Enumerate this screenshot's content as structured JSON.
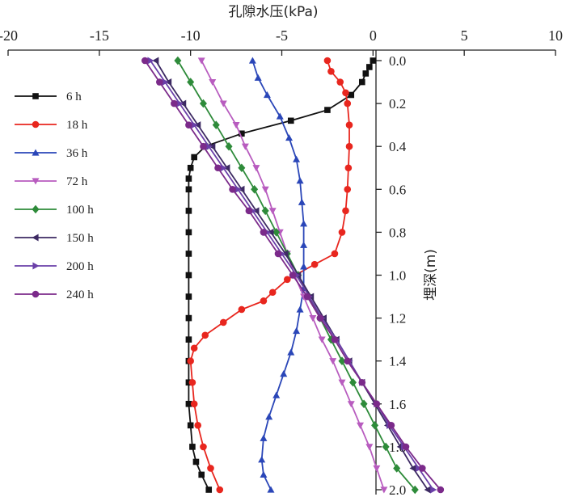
{
  "chart_data": {
    "type": "line",
    "xlabel": "孔隙水压(kPa)",
    "ylabel": "埋深(m)",
    "xlim": [
      -20,
      10
    ],
    "ylim": [
      0.0,
      2.0
    ],
    "x_ticks": [
      "-20",
      "-15",
      "-10",
      "-5",
      "0",
      "5",
      "10"
    ],
    "y_ticks": [
      "0.0",
      "0.2",
      "0.4",
      "0.6",
      "0.8",
      "1.0",
      "1.2",
      "1.4",
      "1.6",
      "1.8",
      "2.0"
    ],
    "legend_position": "left",
    "series": [
      {
        "name": "6 h",
        "color": "#111111",
        "marker": "square",
        "points": [
          [
            0.0,
            0.0
          ],
          [
            -0.2,
            0.03
          ],
          [
            -0.4,
            0.06
          ],
          [
            -0.6,
            0.1
          ],
          [
            -1.2,
            0.16
          ],
          [
            -2.5,
            0.23
          ],
          [
            -4.5,
            0.28
          ],
          [
            -7.2,
            0.34
          ],
          [
            -9.2,
            0.4
          ],
          [
            -9.8,
            0.45
          ],
          [
            -10.0,
            0.5
          ],
          [
            -10.1,
            0.55
          ],
          [
            -10.1,
            0.6
          ],
          [
            -10.1,
            0.7
          ],
          [
            -10.1,
            0.8
          ],
          [
            -10.1,
            0.9
          ],
          [
            -10.1,
            1.0
          ],
          [
            -10.1,
            1.1
          ],
          [
            -10.1,
            1.2
          ],
          [
            -10.1,
            1.3
          ],
          [
            -10.1,
            1.4
          ],
          [
            -10.1,
            1.5
          ],
          [
            -10.1,
            1.6
          ],
          [
            -10.0,
            1.7
          ],
          [
            -9.9,
            1.8
          ],
          [
            -9.7,
            1.87
          ],
          [
            -9.4,
            1.93
          ],
          [
            -9.0,
            2.0
          ]
        ]
      },
      {
        "name": "18 h",
        "color": "#e8261e",
        "marker": "circle",
        "points": [
          [
            -2.5,
            0.0
          ],
          [
            -2.3,
            0.05
          ],
          [
            -1.8,
            0.1
          ],
          [
            -1.5,
            0.15
          ],
          [
            -1.4,
            0.2
          ],
          [
            -1.3,
            0.3
          ],
          [
            -1.3,
            0.4
          ],
          [
            -1.35,
            0.5
          ],
          [
            -1.4,
            0.6
          ],
          [
            -1.5,
            0.7
          ],
          [
            -1.7,
            0.8
          ],
          [
            -2.1,
            0.9
          ],
          [
            -3.2,
            0.95
          ],
          [
            -4.7,
            1.02
          ],
          [
            -5.5,
            1.08
          ],
          [
            -6.0,
            1.12
          ],
          [
            -7.2,
            1.16
          ],
          [
            -8.2,
            1.22
          ],
          [
            -9.2,
            1.28
          ],
          [
            -9.8,
            1.34
          ],
          [
            -10.0,
            1.4
          ],
          [
            -9.9,
            1.5
          ],
          [
            -9.8,
            1.6
          ],
          [
            -9.6,
            1.7
          ],
          [
            -9.3,
            1.8
          ],
          [
            -8.9,
            1.9
          ],
          [
            -8.4,
            2.0
          ]
        ]
      },
      {
        "name": "36 h",
        "color": "#2a46b8",
        "marker": "triangle-up",
        "points": [
          [
            -6.6,
            0.0
          ],
          [
            -6.3,
            0.08
          ],
          [
            -5.8,
            0.16
          ],
          [
            -5.1,
            0.26
          ],
          [
            -4.6,
            0.36
          ],
          [
            -4.2,
            0.46
          ],
          [
            -4.0,
            0.56
          ],
          [
            -3.9,
            0.66
          ],
          [
            -3.8,
            0.76
          ],
          [
            -3.8,
            0.86
          ],
          [
            -3.8,
            0.96
          ],
          [
            -3.8,
            1.06
          ],
          [
            -4.0,
            1.16
          ],
          [
            -4.2,
            1.26
          ],
          [
            -4.5,
            1.36
          ],
          [
            -4.9,
            1.46
          ],
          [
            -5.3,
            1.56
          ],
          [
            -5.7,
            1.66
          ],
          [
            -6.0,
            1.76
          ],
          [
            -6.1,
            1.86
          ],
          [
            -6.0,
            1.93
          ],
          [
            -5.6,
            2.0
          ]
        ]
      },
      {
        "name": "72 h",
        "color": "#b85cbf",
        "marker": "triangle-down",
        "points": [
          [
            -9.4,
            0.0
          ],
          [
            -8.8,
            0.1
          ],
          [
            -8.2,
            0.2
          ],
          [
            -7.5,
            0.3
          ],
          [
            -7.0,
            0.4
          ],
          [
            -6.4,
            0.5
          ],
          [
            -5.9,
            0.6
          ],
          [
            -5.5,
            0.7
          ],
          [
            -5.1,
            0.8
          ],
          [
            -4.7,
            0.9
          ],
          [
            -4.3,
            1.0
          ],
          [
            -3.8,
            1.1
          ],
          [
            -3.3,
            1.2
          ],
          [
            -2.8,
            1.3
          ],
          [
            -2.2,
            1.4
          ],
          [
            -1.7,
            1.5
          ],
          [
            -1.2,
            1.6
          ],
          [
            -0.7,
            1.7
          ],
          [
            -0.2,
            1.8
          ],
          [
            0.2,
            1.9
          ],
          [
            0.6,
            2.0
          ]
        ]
      },
      {
        "name": "100 h",
        "color": "#2e8b3a",
        "marker": "diamond",
        "points": [
          [
            -10.7,
            0.0
          ],
          [
            -10.0,
            0.1
          ],
          [
            -9.3,
            0.2
          ],
          [
            -8.6,
            0.3
          ],
          [
            -7.9,
            0.4
          ],
          [
            -7.2,
            0.5
          ],
          [
            -6.5,
            0.6
          ],
          [
            -5.9,
            0.7
          ],
          [
            -5.3,
            0.8
          ],
          [
            -4.7,
            0.9
          ],
          [
            -4.1,
            1.0
          ],
          [
            -3.5,
            1.1
          ],
          [
            -2.9,
            1.2
          ],
          [
            -2.3,
            1.3
          ],
          [
            -1.7,
            1.4
          ],
          [
            -1.1,
            1.5
          ],
          [
            -0.5,
            1.6
          ],
          [
            0.1,
            1.7
          ],
          [
            0.7,
            1.8
          ],
          [
            1.3,
            1.9
          ],
          [
            2.3,
            2.0
          ]
        ]
      },
      {
        "name": "150 h",
        "color": "#3d2a63",
        "marker": "triangle-left",
        "points": [
          [
            -11.9,
            0.0
          ],
          [
            -11.2,
            0.1
          ],
          [
            -10.4,
            0.2
          ],
          [
            -9.6,
            0.3
          ],
          [
            -8.8,
            0.4
          ],
          [
            -8.0,
            0.5
          ],
          [
            -7.2,
            0.6
          ],
          [
            -6.4,
            0.7
          ],
          [
            -5.6,
            0.8
          ],
          [
            -4.8,
            0.9
          ],
          [
            -4.1,
            1.0
          ],
          [
            -3.4,
            1.1
          ],
          [
            -2.7,
            1.2
          ],
          [
            -2.0,
            1.3
          ],
          [
            -1.3,
            1.4
          ],
          [
            -0.6,
            1.5
          ],
          [
            0.1,
            1.6
          ],
          [
            0.8,
            1.7
          ],
          [
            1.5,
            1.8
          ],
          [
            2.2,
            1.9
          ],
          [
            3.0,
            2.0
          ]
        ]
      },
      {
        "name": "200 h",
        "color": "#6a3fa8",
        "marker": "triangle-right",
        "points": [
          [
            -12.2,
            0.0
          ],
          [
            -11.4,
            0.1
          ],
          [
            -10.6,
            0.2
          ],
          [
            -9.8,
            0.3
          ],
          [
            -9.0,
            0.4
          ],
          [
            -8.2,
            0.5
          ],
          [
            -7.4,
            0.6
          ],
          [
            -6.6,
            0.7
          ],
          [
            -5.8,
            0.8
          ],
          [
            -5.0,
            0.9
          ],
          [
            -4.2,
            1.0
          ],
          [
            -3.5,
            1.1
          ],
          [
            -2.8,
            1.2
          ],
          [
            -2.0,
            1.3
          ],
          [
            -1.3,
            1.4
          ],
          [
            -0.6,
            1.5
          ],
          [
            0.2,
            1.6
          ],
          [
            0.9,
            1.7
          ],
          [
            1.7,
            1.8
          ],
          [
            2.5,
            1.9
          ],
          [
            3.3,
            2.0
          ]
        ]
      },
      {
        "name": "240 h",
        "color": "#7b2a8a",
        "marker": "circle",
        "points": [
          [
            -12.5,
            0.0
          ],
          [
            -11.7,
            0.1
          ],
          [
            -10.9,
            0.2
          ],
          [
            -10.1,
            0.3
          ],
          [
            -9.3,
            0.4
          ],
          [
            -8.5,
            0.5
          ],
          [
            -7.7,
            0.6
          ],
          [
            -6.8,
            0.7
          ],
          [
            -6.0,
            0.8
          ],
          [
            -5.2,
            0.9
          ],
          [
            -4.4,
            1.0
          ],
          [
            -3.6,
            1.1
          ],
          [
            -2.9,
            1.2
          ],
          [
            -2.1,
            1.3
          ],
          [
            -1.4,
            1.4
          ],
          [
            -0.6,
            1.5
          ],
          [
            0.2,
            1.6
          ],
          [
            1.0,
            1.7
          ],
          [
            1.8,
            1.8
          ],
          [
            2.7,
            1.9
          ],
          [
            3.7,
            2.0
          ]
        ]
      }
    ]
  }
}
